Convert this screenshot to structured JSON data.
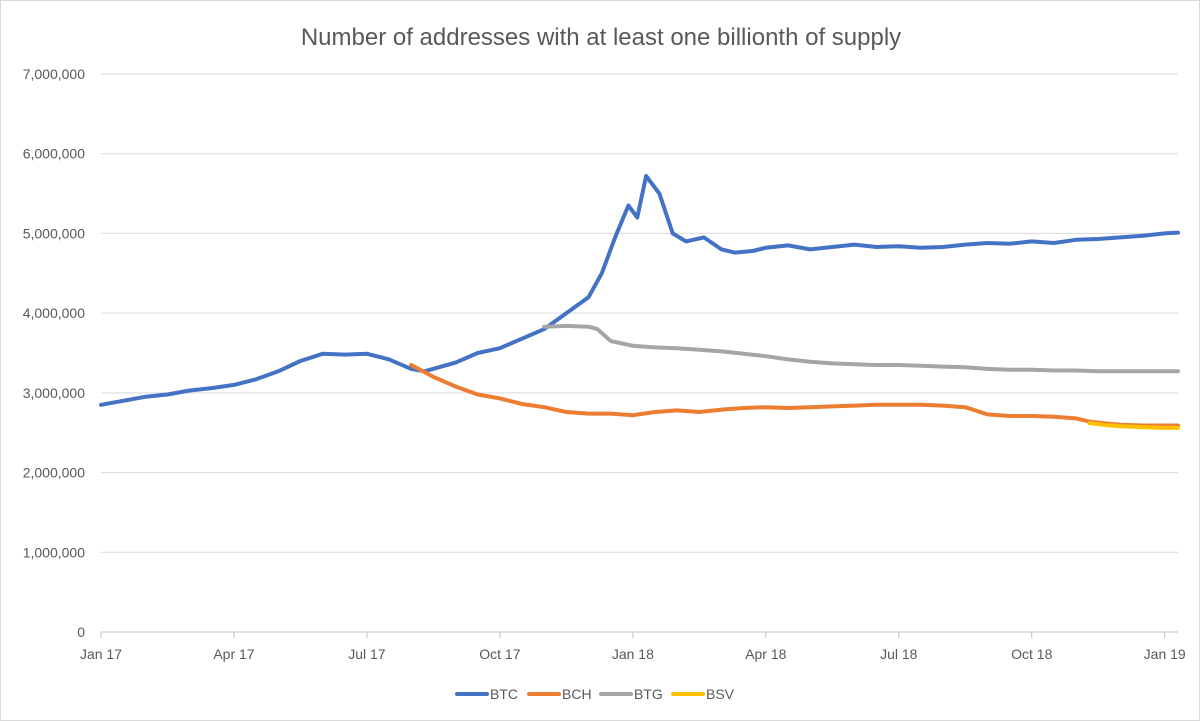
{
  "chart_data": {
    "type": "line",
    "title": "Number of addresses with at least one billionth of supply",
    "xlabel": "",
    "ylabel": "",
    "ylim": [
      0,
      7000000
    ],
    "yticks": [
      0,
      1000000,
      2000000,
      3000000,
      4000000,
      5000000,
      6000000,
      7000000
    ],
    "ytick_labels": [
      "0",
      "1,000,000",
      "2,000,000",
      "3,000,000",
      "4,000,000",
      "5,000,000",
      "6,000,000",
      "7,000,000"
    ],
    "x_unit": "months since Jan 2017",
    "xlim": [
      0,
      24.3
    ],
    "xticks": [
      0,
      3,
      6,
      9,
      12,
      15,
      18,
      21,
      24
    ],
    "xtick_labels": [
      "Jan 17",
      "Apr 17",
      "Jul 17",
      "Oct 17",
      "Jan 18",
      "Apr 18",
      "Jul 18",
      "Oct 18",
      "Jan 19"
    ],
    "grid": true,
    "legend_position": "bottom",
    "series": [
      {
        "name": "BTC",
        "color": "#4472c4",
        "x": [
          0,
          0.5,
          1,
          1.5,
          2,
          2.5,
          3,
          3.5,
          4,
          4.5,
          5,
          5.5,
          6,
          6.5,
          7,
          7.3,
          8,
          8.5,
          9,
          9.5,
          10,
          10.5,
          11,
          11.3,
          11.6,
          11.9,
          12.1,
          12.3,
          12.6,
          12.9,
          13.2,
          13.6,
          14,
          14.3,
          14.7,
          15,
          15.5,
          16,
          16.5,
          17,
          17.5,
          18,
          18.5,
          19,
          19.5,
          20,
          20.5,
          21,
          21.5,
          22,
          22.5,
          23,
          23.5,
          24,
          24.3
        ],
        "values": [
          2850000,
          2900000,
          2950000,
          2980000,
          3030000,
          3060000,
          3100000,
          3170000,
          3270000,
          3400000,
          3490000,
          3480000,
          3490000,
          3420000,
          3300000,
          3270000,
          3380000,
          3500000,
          3560000,
          3680000,
          3800000,
          4000000,
          4200000,
          4500000,
          4950000,
          5350000,
          5200000,
          5720000,
          5500000,
          5000000,
          4900000,
          4950000,
          4800000,
          4760000,
          4780000,
          4820000,
          4850000,
          4800000,
          4830000,
          4860000,
          4830000,
          4840000,
          4820000,
          4830000,
          4860000,
          4880000,
          4870000,
          4900000,
          4880000,
          4920000,
          4930000,
          4950000,
          4970000,
          5000000,
          5010000
        ]
      },
      {
        "name": "BCH",
        "color": "#ed7d31",
        "x": [
          7,
          7.5,
          8,
          8.5,
          9,
          9.5,
          10,
          10.5,
          11,
          11.5,
          12,
          12.5,
          13,
          13.5,
          14,
          14.5,
          15,
          15.5,
          16,
          16.5,
          17,
          17.5,
          18,
          18.5,
          19,
          19.5,
          20,
          20.5,
          21,
          21.5,
          22,
          22.3,
          22.6,
          23,
          23.5,
          24,
          24.3
        ],
        "values": [
          3350000,
          3200000,
          3080000,
          2980000,
          2930000,
          2860000,
          2820000,
          2760000,
          2740000,
          2740000,
          2720000,
          2760000,
          2780000,
          2760000,
          2790000,
          2810000,
          2820000,
          2810000,
          2820000,
          2830000,
          2840000,
          2850000,
          2850000,
          2850000,
          2840000,
          2820000,
          2730000,
          2710000,
          2710000,
          2700000,
          2680000,
          2640000,
          2620000,
          2600000,
          2590000,
          2590000,
          2590000
        ]
      },
      {
        "name": "BTG",
        "color": "#a5a5a5",
        "x": [
          10,
          10.5,
          11,
          11.2,
          11.5,
          12,
          12.5,
          13,
          13.5,
          14,
          14.5,
          15,
          15.5,
          16,
          16.5,
          17,
          17.5,
          18,
          18.5,
          19,
          19.5,
          20,
          20.5,
          21,
          21.5,
          22,
          22.5,
          23,
          23.5,
          24,
          24.3
        ],
        "values": [
          3830000,
          3840000,
          3830000,
          3800000,
          3650000,
          3590000,
          3570000,
          3560000,
          3540000,
          3520000,
          3490000,
          3460000,
          3420000,
          3390000,
          3370000,
          3360000,
          3350000,
          3350000,
          3340000,
          3330000,
          3320000,
          3300000,
          3290000,
          3290000,
          3280000,
          3280000,
          3270000,
          3270000,
          3270000,
          3270000,
          3270000
        ]
      },
      {
        "name": "BSV",
        "color": "#ffc000",
        "x": [
          22.3,
          22.6,
          23,
          23.5,
          24,
          24.3
        ],
        "values": [
          2620000,
          2600000,
          2580000,
          2570000,
          2560000,
          2560000
        ]
      }
    ]
  }
}
